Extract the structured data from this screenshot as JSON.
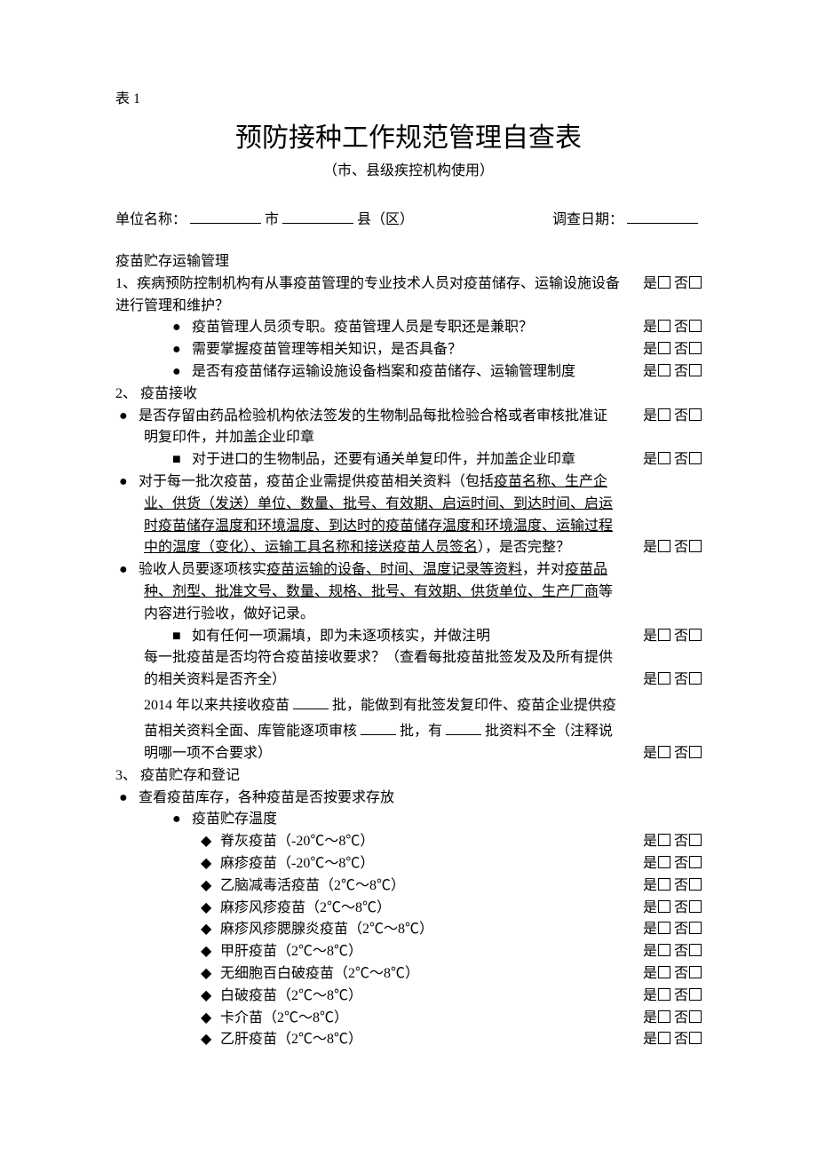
{
  "tableNum": "表 1",
  "title": "预防接种工作规范管理自查表",
  "subtitle": "（市、县级疾控机构使用）",
  "hdr": {
    "unitLabel": "单位名称：",
    "city": "市",
    "county": "县（区）",
    "dateLabel": "调查日期："
  },
  "yes": "是",
  "no": "否",
  "sec1": {
    "head": "疫苗贮存运输管理",
    "q1": "1、疾病预防控制机构有从事疫苗管理的专业技术人员对疫苗储存、运输设施设备进行管理和维护？",
    "q1a": "疫苗管理人员须专职。疫苗管理人员是专职还是兼职？",
    "q1b": "需要掌握疫苗管理等相关知识，是否具备？",
    "q1c": "是否有疫苗储存运输设施设备档案和疫苗储存、运输管理制度"
  },
  "sec2": {
    "head": "2、 疫苗接收",
    "q1a": "是否存留由药品检验机构依法签发的生物制品每批检验合格或者审核批准证明复印件，并加盖企业印章",
    "q1b": "对于进口的生物制品，还要有通关单复印件，并加盖企业印章",
    "q2_pre": "对于每一批次疫苗，疫苗企业需提供疫苗相关资料（包括",
    "q2_u": "疫苗名称、生产企业、供货（发送）单位、数量、批号、有效期、启运时间、到达时间、启运时疫苗储存温度和环境温度、到达时的疫苗储存温度和环境温度、运输过程中的温度（变化）、运输工具名称和接送疫苗人员签名",
    "q2_post": "），是否完整？",
    "q3_pre": "验收人员要逐项核实",
    "q3_u1": "疫苗运输的设备、时间、温度记录等资料",
    "q3_mid": "，并对",
    "q3_u2": "疫苗品种、剂型、批准文号、数量、规格、批号、有效期、供货单位、生产厂商",
    "q3_post": "等内容进行验收，做好记录。",
    "q3a": "如有任何一项漏填，即为未逐项核实，并做注明",
    "q4": "每一批疫苗是否均符合疫苗接收要求？（查看每批疫苗批签发及及所有提供的相关资料是否齐全）",
    "q5_a": "2014 年以来共接收疫苗",
    "q5_b": "批，能做到有批签发复印件、疫苗企业提供疫苗相关资料全面、库管能逐项审核",
    "q5_c": "批，有",
    "q5_d": "批资料不全（注释说明哪一项不合要求）"
  },
  "sec3": {
    "head": "3、 疫苗贮存和登记",
    "q1": "查看疫苗库存，各种疫苗是否按要求存放",
    "q1a": "疫苗贮存温度",
    "vaccines": [
      "脊灰疫苗（-20℃～8℃）",
      "麻疹疫苗（-20℃～8℃）",
      "乙脑减毒活疫苗（2℃～8℃）",
      "麻疹风疹疫苗（2℃～8℃）",
      "麻疹风疹腮腺炎疫苗（2℃～8℃）",
      "甲肝疫苗（2℃～8℃）",
      "无细胞百白破疫苗（2℃～8℃）",
      "白破疫苗（2℃～8℃）",
      "卡介苗（2℃～8℃）",
      "乙肝疫苗（2℃～8℃）"
    ]
  }
}
